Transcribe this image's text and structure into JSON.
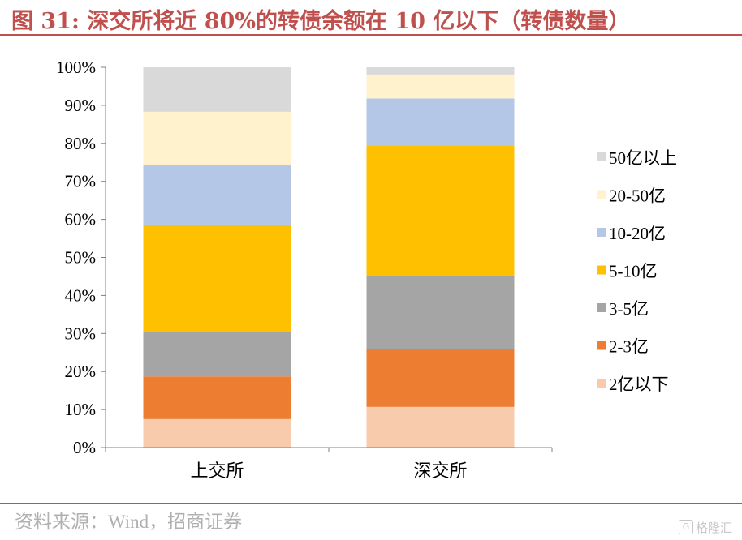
{
  "header": {
    "title": "图 31: 深交所将近 80%的转债余额在 10 亿以下（转债数量）"
  },
  "footer": {
    "source": "资料来源：Wind，招商证券"
  },
  "watermark": {
    "logo_glyph": "G",
    "text": "格隆汇"
  },
  "chart_data": {
    "type": "bar",
    "stacked": true,
    "categories": [
      "上交所",
      "深交所"
    ],
    "series": [
      {
        "name": "2亿以下",
        "color": "#f8cbad",
        "values": [
          7.5,
          10.7
        ]
      },
      {
        "name": "2-3亿",
        "color": "#ed7d31",
        "values": [
          11.2,
          15.3
        ]
      },
      {
        "name": "3-5亿",
        "color": "#a5a5a5",
        "values": [
          11.6,
          19.2
        ]
      },
      {
        "name": "5-10亿",
        "color": "#ffc000",
        "values": [
          28.2,
          34.3
        ]
      },
      {
        "name": "10-20亿",
        "color": "#b4c7e7",
        "values": [
          15.7,
          12.3
        ]
      },
      {
        "name": "20-50亿",
        "color": "#fff2cc",
        "values": [
          14.1,
          6.3
        ]
      },
      {
        "name": "50亿以上",
        "color": "#d9d9d9",
        "values": [
          11.7,
          1.9
        ]
      }
    ],
    "y_ticks": [
      "0%",
      "10%",
      "20%",
      "30%",
      "40%",
      "50%",
      "60%",
      "70%",
      "80%",
      "90%",
      "100%"
    ],
    "ylim": [
      0,
      100
    ],
    "legend_position": "right",
    "legend_order": "top-to-bottom reversed (50亿以上 first)",
    "grid": false
  }
}
